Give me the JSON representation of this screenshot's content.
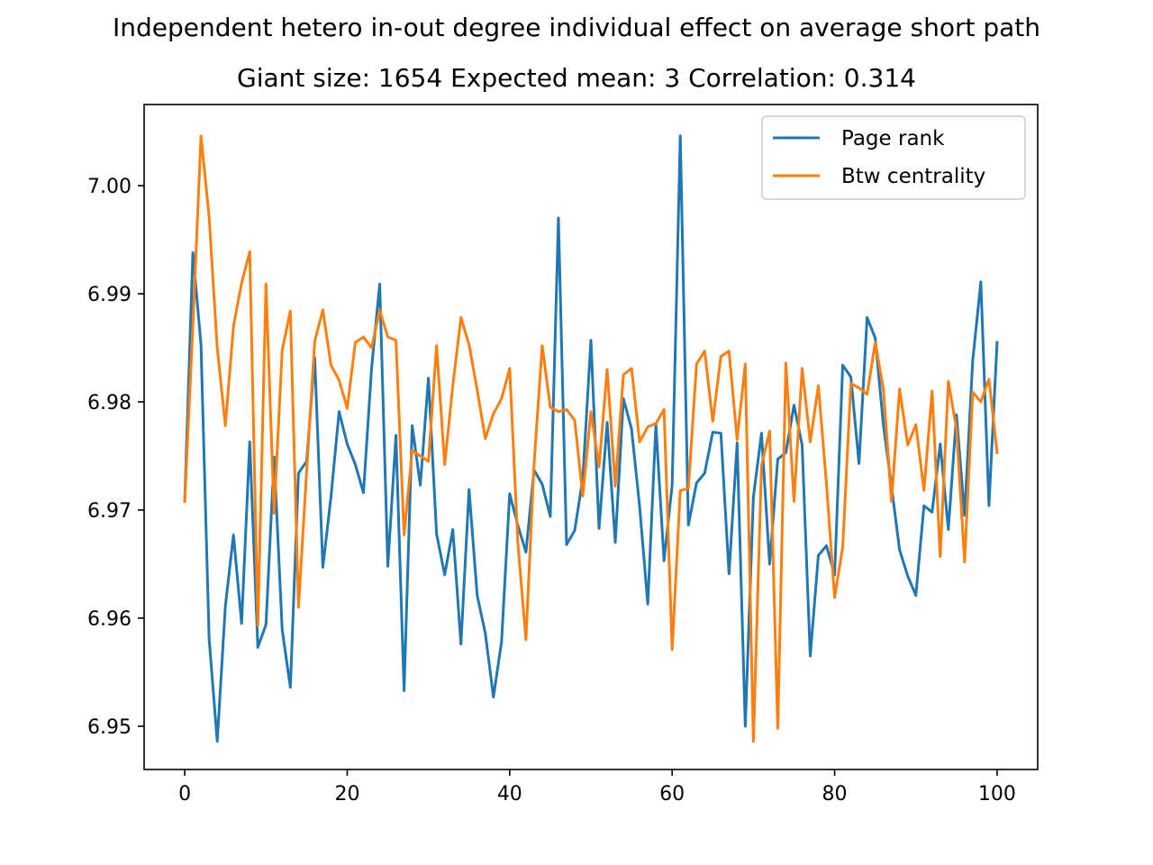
{
  "chart_data": {
    "type": "line",
    "title": "Independent hetero in-out degree individual effect on average short path",
    "subtitle": "Giant size: 1654  Expected mean: 3  Correlation: 0.314",
    "xlabel": "",
    "ylabel": "",
    "xlim": [
      -5,
      105
    ],
    "ylim": [
      6.946,
      7.0075
    ],
    "xticks": [
      0,
      20,
      40,
      60,
      80,
      100
    ],
    "yticks": [
      6.95,
      6.96,
      6.97,
      6.98,
      6.99,
      7.0
    ],
    "ytick_labels": [
      "6.95",
      "6.96",
      "6.97",
      "6.98",
      "6.99",
      "7.00"
    ],
    "grid": false,
    "legend_position": "top-right",
    "x": [
      0,
      1,
      2,
      3,
      4,
      5,
      6,
      7,
      8,
      9,
      10,
      11,
      12,
      13,
      14,
      15,
      16,
      17,
      18,
      19,
      20,
      21,
      22,
      23,
      24,
      25,
      26,
      27,
      28,
      29,
      30,
      31,
      32,
      33,
      34,
      35,
      36,
      37,
      38,
      39,
      40,
      41,
      42,
      43,
      44,
      45,
      46,
      47,
      48,
      49,
      50,
      51,
      52,
      53,
      54,
      55,
      56,
      57,
      58,
      59,
      60,
      61,
      62,
      63,
      64,
      65,
      66,
      67,
      68,
      69,
      70,
      71,
      72,
      73,
      74,
      75,
      76,
      77,
      78,
      79,
      80,
      81,
      82,
      83,
      84,
      85,
      86,
      87,
      88,
      89,
      90,
      91,
      92,
      93,
      94,
      95,
      96,
      97,
      98,
      99,
      100
    ],
    "series": [
      {
        "name": "Page rank",
        "color": "#1f77b4",
        "values": [
          6.9708,
          6.9938,
          6.9853,
          6.9581,
          6.9486,
          6.9611,
          6.9677,
          6.9595,
          6.9763,
          6.9573,
          6.9594,
          6.9749,
          6.9589,
          6.9536,
          6.9734,
          6.9745,
          6.9841,
          6.9647,
          6.9712,
          6.9791,
          6.9761,
          6.9742,
          6.9716,
          6.9831,
          6.9909,
          6.9648,
          6.9769,
          6.9533,
          6.9778,
          6.9723,
          6.9822,
          6.9678,
          6.964,
          6.9682,
          6.9576,
          6.9719,
          6.9621,
          6.9586,
          6.9527,
          6.9578,
          6.9715,
          6.9686,
          6.9661,
          6.9737,
          6.9724,
          6.9694,
          6.997,
          6.9668,
          6.9681,
          6.9729,
          6.9857,
          6.9683,
          6.9781,
          6.967,
          6.9803,
          6.9775,
          6.9703,
          6.9613,
          6.9779,
          6.9653,
          6.9723,
          7.0046,
          6.9686,
          6.9725,
          6.9734,
          6.9772,
          6.9771,
          6.9641,
          6.9762,
          6.95,
          6.9712,
          6.9771,
          6.965,
          6.9747,
          6.9753,
          6.9797,
          6.976,
          6.9565,
          6.9658,
          6.9667,
          6.964,
          6.9834,
          6.9823,
          6.9743,
          6.9878,
          6.9859,
          6.9779,
          6.9722,
          6.9663,
          6.9639,
          6.9621,
          6.9704,
          6.9698,
          6.9761,
          6.9682,
          6.9788,
          6.9695,
          6.9838,
          6.9911,
          6.9704,
          6.9855
        ]
      },
      {
        "name": "Btw centrality",
        "color": "#ff7f0e",
        "values": [
          6.9708,
          6.987,
          7.0046,
          6.9971,
          6.985,
          6.9778,
          6.987,
          6.991,
          6.9939,
          6.9593,
          6.9909,
          6.9697,
          6.9848,
          6.9884,
          6.961,
          6.9735,
          6.9856,
          6.9885,
          6.9834,
          6.982,
          6.9794,
          6.9855,
          6.986,
          6.985,
          6.9885,
          6.986,
          6.9857,
          6.9677,
          6.9755,
          6.975,
          6.9745,
          6.9852,
          6.9742,
          6.9815,
          6.9878,
          6.9853,
          6.9811,
          6.9766,
          6.9789,
          6.9803,
          6.9831,
          6.967,
          6.958,
          6.9742,
          6.9852,
          6.9795,
          6.9791,
          6.9793,
          6.9783,
          6.9713,
          6.9791,
          6.974,
          6.983,
          6.9722,
          6.9825,
          6.9831,
          6.9763,
          6.9777,
          6.978,
          6.9793,
          6.9571,
          6.9718,
          6.972,
          6.9835,
          6.9847,
          6.9782,
          6.9842,
          6.9847,
          6.9765,
          6.9835,
          6.9486,
          6.9741,
          6.9773,
          6.9498,
          6.9836,
          6.9708,
          6.9831,
          6.9763,
          6.9815,
          6.9724,
          6.9619,
          6.9666,
          6.9817,
          6.9813,
          6.9807,
          6.9855,
          6.9812,
          6.9708,
          6.9812,
          6.976,
          6.9779,
          6.9718,
          6.981,
          6.9657,
          6.9819,
          6.9775,
          6.9652,
          6.9809,
          6.98,
          6.9821,
          6.9753
        ]
      }
    ]
  }
}
